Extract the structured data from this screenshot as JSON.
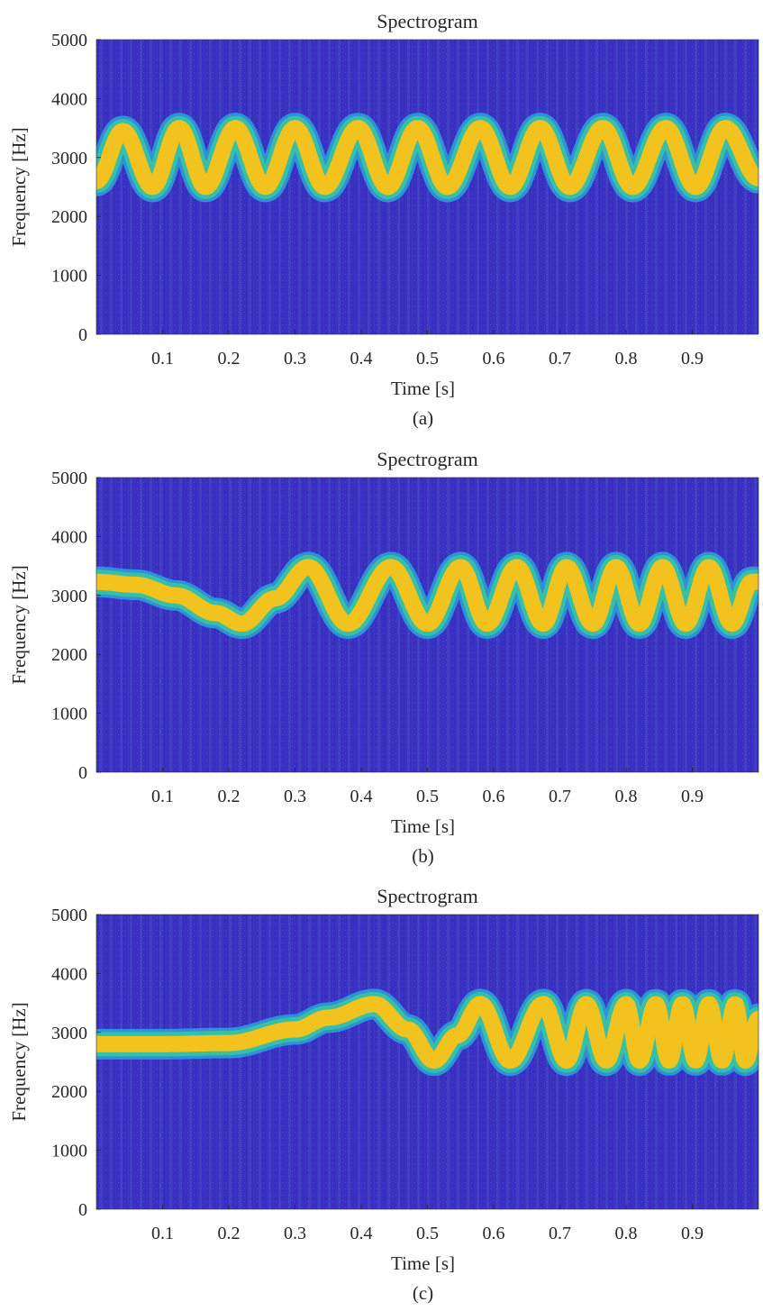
{
  "colors": {
    "background": "#3a2fc0",
    "ridge_core": "#f2c21f",
    "ridge_mid": "#37c0a6",
    "ridge_edge": "#29a2dd",
    "axis_text": "#262626"
  },
  "chart_data": [
    {
      "type": "heatmap",
      "title": "Spectrogram",
      "xlabel": "Time [s]",
      "ylabel": "Frequency [Hz]",
      "caption": "(a)",
      "xlim": [
        0,
        1
      ],
      "ylim": [
        0,
        5000
      ],
      "xticks": [
        "0.1",
        "0.2",
        "0.3",
        "0.4",
        "0.5",
        "0.6",
        "0.7",
        "0.8",
        "0.9"
      ],
      "yticks": [
        "0",
        "1000",
        "2000",
        "3000",
        "4000",
        "5000"
      ],
      "ridge": {
        "center_hz": 3000,
        "amplitude_hz": 520,
        "ridge_description": "sinusoidal frequency modulation with constant rate of about 11 cycles per second",
        "points": [
          [
            0.0,
            2600
          ],
          [
            0.04,
            3450
          ],
          [
            0.085,
            2500
          ],
          [
            0.125,
            3500
          ],
          [
            0.165,
            2500
          ],
          [
            0.21,
            3500
          ],
          [
            0.255,
            2500
          ],
          [
            0.3,
            3500
          ],
          [
            0.345,
            2500
          ],
          [
            0.395,
            3500
          ],
          [
            0.44,
            2500
          ],
          [
            0.485,
            3500
          ],
          [
            0.53,
            2500
          ],
          [
            0.58,
            3500
          ],
          [
            0.625,
            2500
          ],
          [
            0.67,
            3500
          ],
          [
            0.715,
            2500
          ],
          [
            0.765,
            3500
          ],
          [
            0.81,
            2500
          ],
          [
            0.86,
            3500
          ],
          [
            0.905,
            2500
          ],
          [
            0.95,
            3500
          ],
          [
            1.0,
            2650
          ]
        ]
      }
    },
    {
      "type": "heatmap",
      "title": "Spectrogram",
      "xlabel": "Time [s]",
      "ylabel": "Frequency [Hz]",
      "caption": "(b)",
      "xlim": [
        0,
        1
      ],
      "ylim": [
        0,
        5000
      ],
      "xticks": [
        "0.1",
        "0.2",
        "0.3",
        "0.4",
        "0.5",
        "0.6",
        "0.7",
        "0.8",
        "0.9"
      ],
      "yticks": [
        "0",
        "1000",
        "2000",
        "3000",
        "4000",
        "5000"
      ],
      "ridge": {
        "center_hz": 3000,
        "amplitude_hz": 520,
        "ridge_description": "sinusoidal frequency modulation whose rate increases linearly over time",
        "points": [
          [
            0.0,
            3230
          ],
          [
            0.06,
            3180
          ],
          [
            0.12,
            3000
          ],
          [
            0.18,
            2700
          ],
          [
            0.22,
            2520
          ],
          [
            0.27,
            2950
          ],
          [
            0.32,
            3480
          ],
          [
            0.38,
            2520
          ],
          [
            0.445,
            3480
          ],
          [
            0.5,
            2520
          ],
          [
            0.55,
            3480
          ],
          [
            0.59,
            2520
          ],
          [
            0.635,
            3480
          ],
          [
            0.675,
            2520
          ],
          [
            0.71,
            3480
          ],
          [
            0.75,
            2520
          ],
          [
            0.785,
            3480
          ],
          [
            0.82,
            2520
          ],
          [
            0.855,
            3480
          ],
          [
            0.89,
            2520
          ],
          [
            0.925,
            3480
          ],
          [
            0.96,
            2520
          ],
          [
            0.99,
            3230
          ]
        ]
      }
    },
    {
      "type": "heatmap",
      "title": "Spectrogram",
      "xlabel": "Time [s]",
      "ylabel": "Frequency [Hz]",
      "caption": "(c)",
      "xlim": [
        0,
        1
      ],
      "ylim": [
        0,
        5000
      ],
      "xticks": [
        "0.1",
        "0.2",
        "0.3",
        "0.4",
        "0.5",
        "0.6",
        "0.7",
        "0.8",
        "0.9"
      ],
      "yticks": [
        "0",
        "1000",
        "2000",
        "3000",
        "4000",
        "5000"
      ],
      "ridge": {
        "center_hz": 3000,
        "amplitude_hz": 520,
        "ridge_description": "sinusoidal frequency modulation whose rate increases quadratically over time",
        "points": [
          [
            0.0,
            2800
          ],
          [
            0.1,
            2800
          ],
          [
            0.2,
            2820
          ],
          [
            0.3,
            3050
          ],
          [
            0.35,
            3250
          ],
          [
            0.42,
            3480
          ],
          [
            0.47,
            3050
          ],
          [
            0.51,
            2520
          ],
          [
            0.545,
            2950
          ],
          [
            0.58,
            3480
          ],
          [
            0.625,
            2520
          ],
          [
            0.675,
            3480
          ],
          [
            0.71,
            2520
          ],
          [
            0.74,
            3480
          ],
          [
            0.77,
            2520
          ],
          [
            0.8,
            3480
          ],
          [
            0.82,
            2520
          ],
          [
            0.845,
            3480
          ],
          [
            0.865,
            2520
          ],
          [
            0.885,
            3480
          ],
          [
            0.905,
            2520
          ],
          [
            0.925,
            3480
          ],
          [
            0.945,
            2520
          ],
          [
            0.965,
            3480
          ],
          [
            0.98,
            2520
          ],
          [
            1.0,
            3230
          ]
        ]
      }
    }
  ]
}
